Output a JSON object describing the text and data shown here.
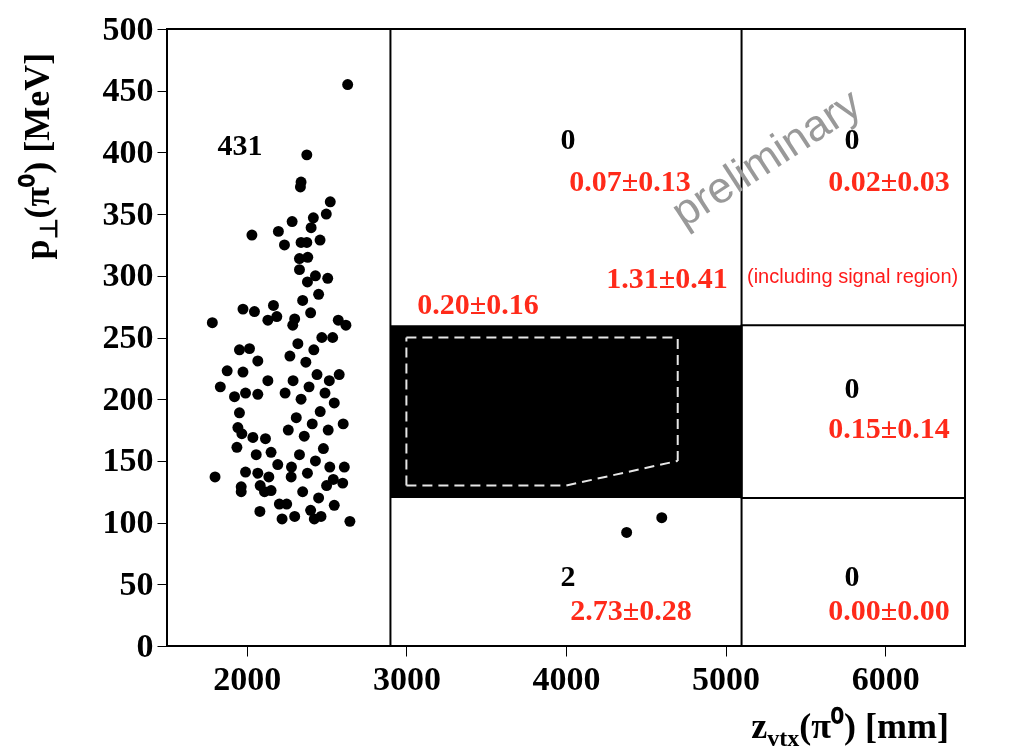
{
  "chart_data": {
    "type": "scatter",
    "xlabel": "z$_{vtx}$(π⁰) [mm]",
    "ylabel": "p$_{⊥}$(π⁰) [MeV]",
    "xlim": [
      1500,
      6500
    ],
    "xticks": [
      2000,
      3000,
      4000,
      5000,
      6000
    ],
    "ylim": [
      0,
      500
    ],
    "yticks": [
      0,
      50,
      100,
      150,
      200,
      250,
      300,
      350,
      400,
      450,
      500
    ],
    "grid": false,
    "series": [
      {
        "color": "#000000",
        "marker": "circle",
        "x": [
          2632,
          2376,
          2340,
          2336,
          2523,
          2498,
          2417,
          2284,
          2032,
          2198,
          2236,
          2403,
          2459,
          2340,
          2376,
          2330,
          2382,
          2507,
          1784,
          1976,
          2048,
          2167,
          2132,
          2188,
          2573,
          2621,
          2538,
          2288,
          1954,
          2017,
          2069,
          1877,
          1976,
          1834,
          1923,
          1992,
          2069,
          2132,
          2579,
          2517,
          2548,
          1954,
          2604,
          1944,
          1969,
          2038,
          2117,
          1938,
          2059,
          2152,
          2194,
          1992,
          1801,
          2069,
          2138,
          1965,
          1965,
          2084,
          2111,
          2152,
          2611,
          2601,
          2542,
          2204,
          2082,
          2221,
          2423,
          2465,
          2646,
          2548,
          2278,
          2250,
          2300,
          2350,
          2400,
          2450,
          2500,
          2280,
          2330,
          2380,
          2430,
          2480,
          2520,
          2260,
          2310,
          2360,
          2410,
          2460,
          2510,
          2240,
          2290,
          2340,
          2390,
          2440,
          2490,
          2270,
          2320,
          2370,
          2420,
          2470,
          2300,
          2350,
          2400,
          2450,
          2380,
          2330,
          2430,
          4380,
          4600
        ],
        "values": [
          455,
          398,
          376,
          372,
          360,
          350,
          347,
          344,
          333,
          336,
          325,
          339,
          329,
          327,
          327,
          314,
          315,
          298,
          262,
          273,
          271,
          276,
          264,
          267,
          264,
          260,
          250,
          260,
          240,
          241,
          231,
          223,
          222,
          210,
          202,
          205,
          204,
          215,
          220,
          215,
          197,
          189,
          180,
          177,
          172,
          169,
          168,
          161,
          155,
          157,
          147,
          141,
          137,
          140,
          137,
          129,
          125,
          130,
          125,
          126,
          145,
          132,
          135,
          115,
          109,
          103,
          103,
          105,
          101,
          114,
          137,
          115,
          105,
          125,
          110,
          120,
          130,
          145,
          155,
          140,
          150,
          160,
          145,
          175,
          185,
          170,
          180,
          190,
          175,
          205,
          215,
          200,
          210,
          220,
          205,
          235,
          245,
          230,
          240,
          250,
          265,
          280,
          270,
          285,
          295,
          305,
          300,
          92,
          104
        ]
      },
      {
        "type": "line",
        "color": "#000000",
        "x": [
          2900,
          5100
        ],
        "values": [
          null,
          null
        ],
        "lower": [
          120,
          120
        ],
        "upper": [
          260,
          260
        ]
      },
      {
        "type": "line",
        "color": "#000000",
        "line_style": "solid",
        "x": [
          6500,
          5100,
          5100,
          6500
        ],
        "values": [
          260,
          260,
          120,
          120
        ]
      },
      {
        "type": "line",
        "color": "#e6e6e6",
        "line_style": "dashed",
        "x": [
          3000,
          4000,
          4700
        ],
        "values": [
          130,
          130,
          150
        ]
      },
      {
        "type": "line",
        "color": "#e6e6e6",
        "line_style": "dashed",
        "x": [
          3000,
          4700
        ],
        "values": [
          250,
          250
        ]
      },
      {
        "type": "line",
        "color": "#e6e6e6",
        "line_style": "dashed",
        "x": [
          3000,
          3000
        ],
        "values": [
          130,
          250
        ]
      },
      {
        "type": "line",
        "color": "#e6e6e6",
        "line_style": "dashed",
        "x": [
          4700,
          4700
        ],
        "values": [
          150,
          250
        ]
      }
    ],
    "ref_lines": [
      {
        "axis": "x",
        "value": 2900,
        "color": "#000000"
      },
      {
        "axis": "x",
        "value": 5100,
        "color": "#000000"
      }
    ],
    "annotations": [
      "431",
      "0",
      "0.07±0.13",
      "0",
      "0.02±0.03",
      "1.31±0.41",
      "0.20±0.16",
      "0",
      "0.15±0.14",
      "2",
      "2.73±0.28",
      "0",
      "0.00±0.00",
      "preliminary",
      "(including signal region)"
    ]
  }
}
